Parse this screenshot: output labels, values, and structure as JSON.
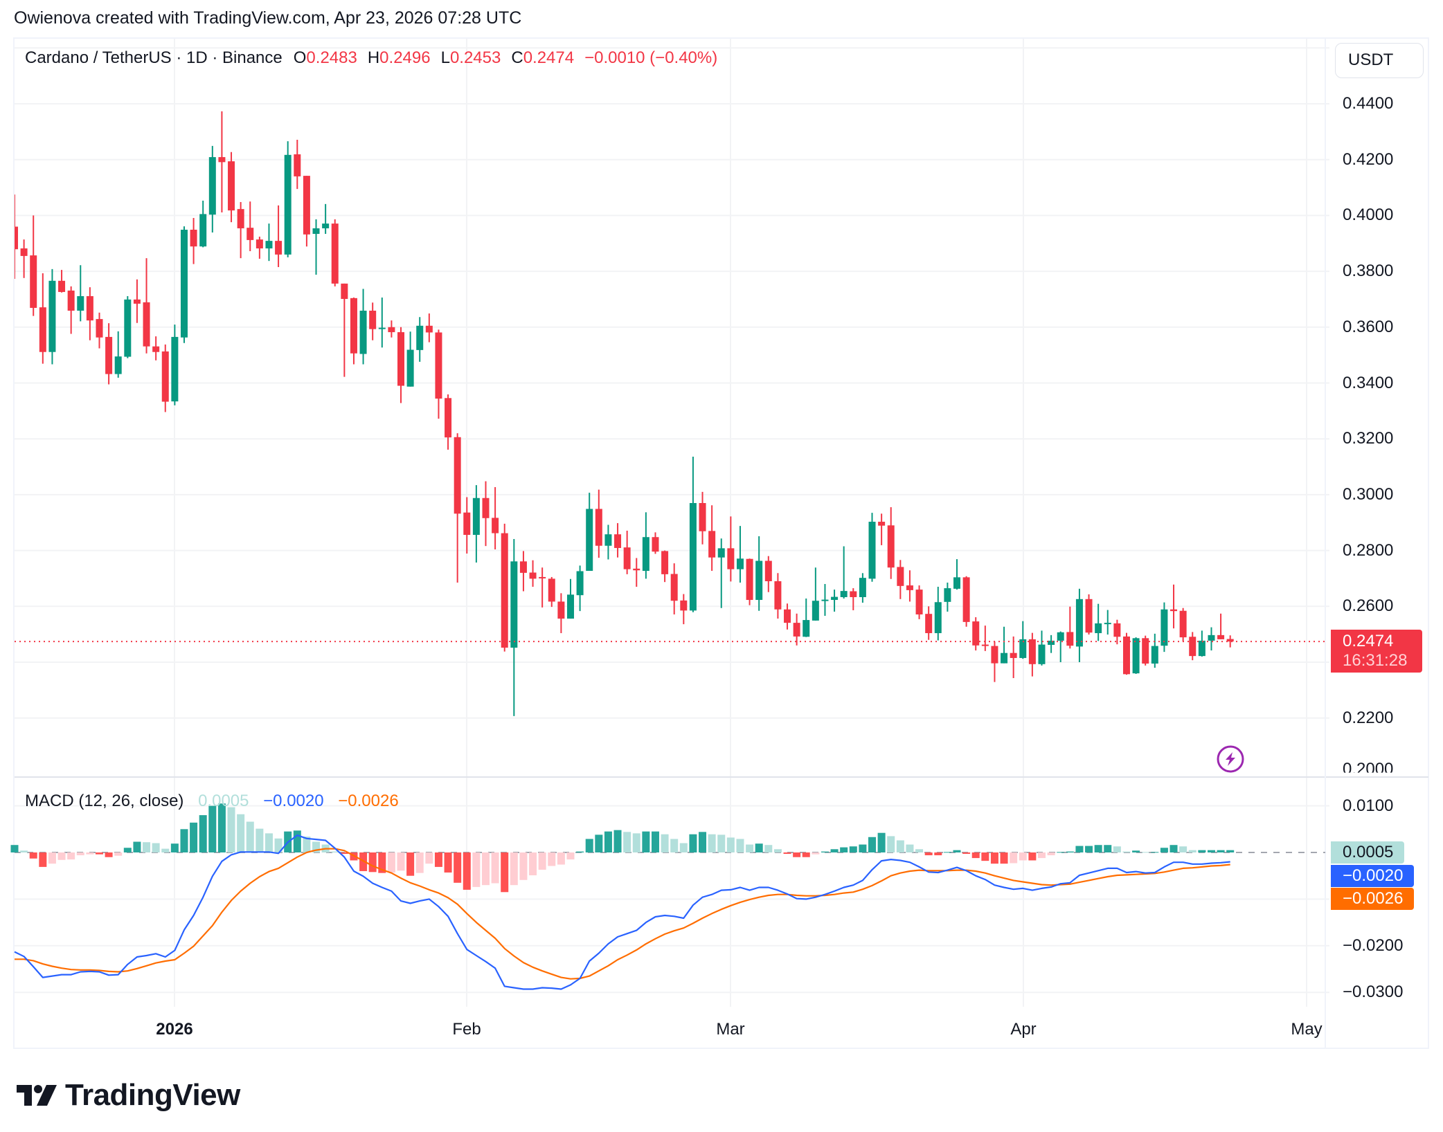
{
  "credit": "Owienova created with TradingView.com, Apr 23, 2026 07:28 UTC",
  "legend": {
    "symbol": "Cardano / TetherUS · 1D · Binance",
    "o_label": "O",
    "o": "0.2483",
    "h_label": "H",
    "h": "0.2496",
    "l_label": "L",
    "l": "0.2453",
    "c_label": "C",
    "c": "0.2474",
    "change": "−0.0010 (−0.40%)"
  },
  "currency_button": "USDT",
  "price_axis": {
    "labels": [
      "0.4400",
      "0.4200",
      "0.4000",
      "0.3800",
      "0.3600",
      "0.3400",
      "0.3200",
      "0.3000",
      "0.2800",
      "0.2600",
      "0.2200",
      "0.2000"
    ],
    "values": [
      0.44,
      0.42,
      0.4,
      0.38,
      0.36,
      0.34,
      0.32,
      0.3,
      0.28,
      0.26,
      0.22,
      0.2
    ]
  },
  "last_price": {
    "value": "0.2474",
    "countdown": "16:31:28",
    "color": "#f23645"
  },
  "macd": {
    "title": "MACD (12, 26, close)",
    "histogram_value": "0.0005",
    "macd_value": "−0.0020",
    "signal_value": "−0.0026",
    "axis_labels": [
      "0.0100",
      "−0.0200",
      "−0.0300"
    ],
    "axis_values": [
      0.01,
      -0.02,
      -0.03
    ]
  },
  "time_axis": {
    "labels": [
      "2026",
      "Feb",
      "Mar",
      "Apr",
      "May"
    ]
  },
  "logo": {
    "text": "TradingView"
  },
  "icons": {
    "alert": "lightning-icon"
  },
  "colors": {
    "up": "#089981",
    "down": "#f23645",
    "hist_up_strong": "#26a69a",
    "hist_up_weak": "#b2dfdb",
    "hist_down_strong": "#ff5252",
    "hist_down_weak": "#ffcdd2",
    "macd_line": "#2962ff",
    "signal_line": "#ff6d00",
    "grid": "#f2f3f5"
  },
  "chart_data": {
    "type": "candlestick",
    "title": "Cardano / TetherUS · 1D · Binance",
    "xlabel": "",
    "ylabel": "USDT",
    "x_ticks": [
      "2026",
      "Feb",
      "Mar",
      "Apr",
      "May"
    ],
    "ylim": [
      0.2,
      0.46
    ],
    "grid": true,
    "ohlc": [
      [
        0.396,
        0.4075,
        0.3773,
        0.3879
      ],
      [
        0.3882,
        0.3914,
        0.3776,
        0.3855
      ],
      [
        0.3857,
        0.4,
        0.364,
        0.3669
      ],
      [
        0.3671,
        0.3793,
        0.3469,
        0.3511
      ],
      [
        0.3511,
        0.3808,
        0.3467,
        0.3766
      ],
      [
        0.3766,
        0.3805,
        0.3724,
        0.3726
      ],
      [
        0.3731,
        0.3746,
        0.3576,
        0.3659
      ],
      [
        0.3659,
        0.3822,
        0.3621,
        0.3711
      ],
      [
        0.3711,
        0.3743,
        0.3553,
        0.3624
      ],
      [
        0.3629,
        0.3652,
        0.3524,
        0.3563
      ],
      [
        0.3565,
        0.3614,
        0.3395,
        0.3432
      ],
      [
        0.3432,
        0.3585,
        0.3419,
        0.3495
      ],
      [
        0.3494,
        0.3711,
        0.3489,
        0.3699
      ],
      [
        0.3699,
        0.3771,
        0.3615,
        0.3684
      ],
      [
        0.3689,
        0.3847,
        0.3506,
        0.3531
      ],
      [
        0.3531,
        0.3567,
        0.3481,
        0.3511
      ],
      [
        0.3513,
        0.3538,
        0.3296,
        0.3333
      ],
      [
        0.3334,
        0.3609,
        0.332,
        0.3565
      ],
      [
        0.3563,
        0.3961,
        0.3543,
        0.3949
      ],
      [
        0.3949,
        0.3991,
        0.3826,
        0.3889
      ],
      [
        0.3889,
        0.4053,
        0.3886,
        0.4005
      ],
      [
        0.4003,
        0.4249,
        0.3939,
        0.4209
      ],
      [
        0.4209,
        0.4373,
        0.4011,
        0.4191
      ],
      [
        0.4194,
        0.4227,
        0.3976,
        0.4018
      ],
      [
        0.4023,
        0.4048,
        0.3847,
        0.3954
      ],
      [
        0.3956,
        0.405,
        0.3872,
        0.3912
      ],
      [
        0.3914,
        0.3924,
        0.3845,
        0.3882
      ],
      [
        0.3882,
        0.3971,
        0.3837,
        0.3909
      ],
      [
        0.3909,
        0.4036,
        0.3815,
        0.386
      ],
      [
        0.386,
        0.4266,
        0.385,
        0.4217
      ],
      [
        0.4219,
        0.4271,
        0.4095,
        0.414
      ],
      [
        0.4142,
        0.4142,
        0.3889,
        0.3932
      ],
      [
        0.3934,
        0.3986,
        0.3788,
        0.3954
      ],
      [
        0.3954,
        0.4041,
        0.3934,
        0.3971
      ],
      [
        0.3971,
        0.3986,
        0.3746,
        0.3756
      ],
      [
        0.3756,
        0.3756,
        0.3422,
        0.3701
      ],
      [
        0.3704,
        0.3706,
        0.3467,
        0.3506
      ],
      [
        0.3504,
        0.3737,
        0.3467,
        0.3659
      ],
      [
        0.3659,
        0.3688,
        0.3553,
        0.3593
      ],
      [
        0.3594,
        0.3706,
        0.3527,
        0.3598
      ],
      [
        0.36,
        0.3624,
        0.3563,
        0.3582
      ],
      [
        0.3582,
        0.36,
        0.3328,
        0.339
      ],
      [
        0.3387,
        0.3584,
        0.3387,
        0.3519
      ],
      [
        0.3518,
        0.3636,
        0.3476,
        0.3605
      ],
      [
        0.3605,
        0.3649,
        0.3546,
        0.3581
      ],
      [
        0.3581,
        0.3591,
        0.3272,
        0.3344
      ],
      [
        0.3346,
        0.3359,
        0.3161,
        0.3205
      ],
      [
        0.3206,
        0.322,
        0.2685,
        0.2932
      ],
      [
        0.2936,
        0.2991,
        0.2789,
        0.2856
      ],
      [
        0.2856,
        0.3034,
        0.2757,
        0.2988
      ],
      [
        0.2988,
        0.3048,
        0.2816,
        0.2916
      ],
      [
        0.2917,
        0.3027,
        0.2804,
        0.2862
      ],
      [
        0.2862,
        0.2896,
        0.2438,
        0.2452
      ],
      [
        0.2452,
        0.2841,
        0.2207,
        0.2761
      ],
      [
        0.2761,
        0.2798,
        0.2654,
        0.272
      ],
      [
        0.2721,
        0.2765,
        0.267,
        0.2699
      ],
      [
        0.2705,
        0.2739,
        0.2596,
        0.2701
      ],
      [
        0.2699,
        0.2705,
        0.2598,
        0.2617
      ],
      [
        0.2617,
        0.2647,
        0.2504,
        0.2556
      ],
      [
        0.2556,
        0.2698,
        0.2556,
        0.2642
      ],
      [
        0.264,
        0.2746,
        0.2583,
        0.2726
      ],
      [
        0.2727,
        0.3007,
        0.2727,
        0.2949
      ],
      [
        0.2949,
        0.3018,
        0.2774,
        0.2817
      ],
      [
        0.2817,
        0.2892,
        0.2768,
        0.2858
      ],
      [
        0.2858,
        0.2898,
        0.2775,
        0.2809
      ],
      [
        0.2811,
        0.2871,
        0.2715,
        0.2733
      ],
      [
        0.2735,
        0.2773,
        0.267,
        0.2729
      ],
      [
        0.2727,
        0.2937,
        0.2699,
        0.2848
      ],
      [
        0.2848,
        0.2865,
        0.2788,
        0.2796
      ],
      [
        0.2798,
        0.28,
        0.2687,
        0.2715
      ],
      [
        0.2716,
        0.2754,
        0.2571,
        0.262
      ],
      [
        0.2621,
        0.2644,
        0.2536,
        0.2585
      ],
      [
        0.2585,
        0.3136,
        0.2579,
        0.297
      ],
      [
        0.297,
        0.301,
        0.2822,
        0.2869
      ],
      [
        0.287,
        0.2962,
        0.2727,
        0.2775
      ],
      [
        0.2775,
        0.2843,
        0.2594,
        0.2808
      ],
      [
        0.2808,
        0.2922,
        0.2689,
        0.2733
      ],
      [
        0.2733,
        0.2888,
        0.2685,
        0.2771
      ],
      [
        0.277,
        0.2771,
        0.2604,
        0.2623
      ],
      [
        0.2623,
        0.2851,
        0.2584,
        0.2763
      ],
      [
        0.2763,
        0.278,
        0.2651,
        0.269
      ],
      [
        0.269,
        0.2719,
        0.2556,
        0.2589
      ],
      [
        0.2589,
        0.261,
        0.2517,
        0.2541
      ],
      [
        0.2541,
        0.2574,
        0.246,
        0.2492
      ],
      [
        0.2491,
        0.2628,
        0.249,
        0.2551
      ],
      [
        0.2549,
        0.2739,
        0.2549,
        0.262
      ],
      [
        0.2619,
        0.268,
        0.2566,
        0.2624
      ],
      [
        0.2623,
        0.266,
        0.2581,
        0.2634
      ],
      [
        0.2633,
        0.2815,
        0.2628,
        0.2655
      ],
      [
        0.2654,
        0.2665,
        0.2586,
        0.2633
      ],
      [
        0.2633,
        0.2719,
        0.2613,
        0.2702
      ],
      [
        0.2699,
        0.2935,
        0.2688,
        0.2903
      ],
      [
        0.2903,
        0.2932,
        0.2819,
        0.2889
      ],
      [
        0.289,
        0.2955,
        0.2698,
        0.2739
      ],
      [
        0.2741,
        0.2766,
        0.2626,
        0.2673
      ],
      [
        0.2675,
        0.2729,
        0.2617,
        0.2658
      ],
      [
        0.266,
        0.2675,
        0.2554,
        0.2571
      ],
      [
        0.2573,
        0.26,
        0.248,
        0.2504
      ],
      [
        0.2504,
        0.267,
        0.2478,
        0.2615
      ],
      [
        0.2616,
        0.2685,
        0.2581,
        0.2665
      ],
      [
        0.2663,
        0.2769,
        0.266,
        0.2704
      ],
      [
        0.2704,
        0.2708,
        0.2527,
        0.2544
      ],
      [
        0.2546,
        0.2561,
        0.2442,
        0.246
      ],
      [
        0.2463,
        0.2531,
        0.244,
        0.246
      ],
      [
        0.2458,
        0.2474,
        0.2329,
        0.2396
      ],
      [
        0.2396,
        0.2527,
        0.2396,
        0.2433
      ],
      [
        0.2433,
        0.2492,
        0.2343,
        0.2415
      ],
      [
        0.2415,
        0.2547,
        0.2412,
        0.2482
      ],
      [
        0.2482,
        0.2505,
        0.2349,
        0.2393
      ],
      [
        0.2393,
        0.2513,
        0.2388,
        0.2463
      ],
      [
        0.2462,
        0.2497,
        0.2433,
        0.2477
      ],
      [
        0.2477,
        0.251,
        0.24,
        0.2507
      ],
      [
        0.2508,
        0.2599,
        0.2449,
        0.2459
      ],
      [
        0.2456,
        0.2663,
        0.24,
        0.2626
      ],
      [
        0.2626,
        0.2643,
        0.2499,
        0.2506
      ],
      [
        0.2504,
        0.2609,
        0.2476,
        0.2539
      ],
      [
        0.2538,
        0.2587,
        0.2499,
        0.2541
      ],
      [
        0.2539,
        0.2552,
        0.2464,
        0.2491
      ],
      [
        0.2492,
        0.2505,
        0.2355,
        0.2357
      ],
      [
        0.236,
        0.2489,
        0.2358,
        0.2486
      ],
      [
        0.2486,
        0.2495,
        0.2388,
        0.2395
      ],
      [
        0.2395,
        0.2502,
        0.238,
        0.2458
      ],
      [
        0.2459,
        0.2614,
        0.2437,
        0.2589
      ],
      [
        0.2589,
        0.2678,
        0.2521,
        0.2583
      ],
      [
        0.2584,
        0.2594,
        0.2474,
        0.2489
      ],
      [
        0.2491,
        0.2508,
        0.2407,
        0.2422
      ],
      [
        0.2422,
        0.2513,
        0.242,
        0.2477
      ],
      [
        0.2477,
        0.2525,
        0.2442,
        0.2497
      ],
      [
        0.2497,
        0.2574,
        0.2482,
        0.2482
      ],
      [
        0.2483,
        0.2496,
        0.2453,
        0.2474
      ]
    ],
    "macd_series": {
      "histogram": [
        0.0016,
        0.0004,
        -0.0013,
        -0.0031,
        -0.0024,
        -0.0016,
        -0.0015,
        -0.0006,
        -0.0004,
        -0.0004,
        -0.001,
        -0.0007,
        0.001,
        0.0023,
        0.0022,
        0.002,
        0.0008,
        0.0019,
        0.005,
        0.0064,
        0.008,
        0.01,
        0.0105,
        0.0097,
        0.0082,
        0.0066,
        0.0051,
        0.0041,
        0.003,
        0.0045,
        0.0047,
        0.0034,
        0.0023,
        0.0017,
        0.0002,
        -0.0003,
        -0.0017,
        -0.004,
        -0.0042,
        -0.0044,
        -0.0043,
        -0.0039,
        -0.005,
        -0.0044,
        -0.0024,
        -0.0031,
        -0.0043,
        -0.0065,
        -0.008,
        -0.0074,
        -0.007,
        -0.0066,
        -0.0085,
        -0.007,
        -0.0059,
        -0.0049,
        -0.0037,
        -0.0029,
        -0.0026,
        -0.0015,
        0.0002,
        0.0029,
        0.0038,
        0.0045,
        0.0048,
        0.0044,
        0.0041,
        0.0045,
        0.0045,
        0.0039,
        0.0029,
        0.002,
        0.0039,
        0.0044,
        0.0039,
        0.0038,
        0.0032,
        0.0029,
        0.0017,
        0.0019,
        0.0016,
        0.0007,
        -0.0003,
        -0.001,
        -0.001,
        -0.0004,
        0.0002,
        0.0007,
        0.0011,
        0.0013,
        0.0017,
        0.0033,
        0.0042,
        0.0035,
        0.0026,
        0.0017,
        0.0007,
        -0.0006,
        -0.0006,
        0.0001,
        0.0005,
        -0.0003,
        -0.0012,
        -0.0018,
        -0.0024,
        -0.0024,
        -0.0023,
        -0.0017,
        -0.0017,
        -0.0012,
        -0.0006,
        0.0001,
        0.0002,
        0.0014,
        0.0014,
        0.0016,
        0.0016,
        0.0013,
        0.0002,
        0.0004,
        0.0001,
        0.0001,
        0.001,
        0.0016,
        0.0013,
        0.0005,
        0.0005,
        0.0005,
        0.0005,
        0.0005
      ],
      "macd": [
        -0.0213,
        -0.0223,
        -0.0245,
        -0.0268,
        -0.0265,
        -0.0262,
        -0.0262,
        -0.0256,
        -0.0255,
        -0.0256,
        -0.0263,
        -0.0262,
        -0.024,
        -0.0224,
        -0.0221,
        -0.0217,
        -0.0224,
        -0.021,
        -0.0166,
        -0.0135,
        -0.0096,
        -0.0051,
        -0.0019,
        -0.0005,
        0.0001,
        0.0001,
        0.0001,
        0.0001,
        -0.0002,
        0.0022,
        0.0037,
        0.003,
        0.0028,
        0.0026,
        0.0009,
        -0.001,
        -0.004,
        -0.0051,
        -0.0066,
        -0.0075,
        -0.0083,
        -0.0104,
        -0.0109,
        -0.0104,
        -0.01,
        -0.0116,
        -0.0137,
        -0.0174,
        -0.0208,
        -0.0221,
        -0.0234,
        -0.0248,
        -0.0287,
        -0.029,
        -0.0293,
        -0.0293,
        -0.029,
        -0.0291,
        -0.0293,
        -0.0284,
        -0.027,
        -0.0233,
        -0.0216,
        -0.0196,
        -0.0181,
        -0.0174,
        -0.0167,
        -0.015,
        -0.0138,
        -0.0135,
        -0.0137,
        -0.0141,
        -0.0113,
        -0.0096,
        -0.009,
        -0.0081,
        -0.008,
        -0.0075,
        -0.0081,
        -0.0075,
        -0.0075,
        -0.0081,
        -0.0089,
        -0.0099,
        -0.01,
        -0.0096,
        -0.009,
        -0.0083,
        -0.0075,
        -0.007,
        -0.006,
        -0.0037,
        -0.0018,
        -0.0015,
        -0.0017,
        -0.0021,
        -0.0031,
        -0.0042,
        -0.0043,
        -0.0038,
        -0.0032,
        -0.0039,
        -0.005,
        -0.0058,
        -0.007,
        -0.0075,
        -0.0079,
        -0.0077,
        -0.0081,
        -0.0077,
        -0.0074,
        -0.0067,
        -0.0065,
        -0.0049,
        -0.0044,
        -0.0039,
        -0.0034,
        -0.0034,
        -0.0043,
        -0.0041,
        -0.0044,
        -0.0043,
        -0.0031,
        -0.0021,
        -0.0021,
        -0.0025,
        -0.0025,
        -0.0023,
        -0.0022,
        -0.002
      ],
      "signal": [
        -0.0229,
        -0.0229,
        -0.0232,
        -0.0239,
        -0.0244,
        -0.0248,
        -0.0251,
        -0.0252,
        -0.0252,
        -0.0253,
        -0.0255,
        -0.0256,
        -0.0254,
        -0.0249,
        -0.0243,
        -0.0237,
        -0.0233,
        -0.023,
        -0.0216,
        -0.0201,
        -0.0179,
        -0.0157,
        -0.0128,
        -0.0103,
        -0.0083,
        -0.0066,
        -0.0052,
        -0.0041,
        -0.0034,
        -0.0022,
        -0.001,
        0.0,
        0.0005,
        0.0008,
        0.0008,
        0.0004,
        -0.0007,
        -0.0018,
        -0.0029,
        -0.0037,
        -0.0044,
        -0.0055,
        -0.0065,
        -0.0072,
        -0.008,
        -0.0087,
        -0.0097,
        -0.0111,
        -0.0131,
        -0.015,
        -0.0167,
        -0.0184,
        -0.0206,
        -0.0222,
        -0.0236,
        -0.0246,
        -0.0254,
        -0.0261,
        -0.0268,
        -0.0271,
        -0.027,
        -0.0265,
        -0.0254,
        -0.0243,
        -0.023,
        -0.022,
        -0.0209,
        -0.0196,
        -0.0185,
        -0.0175,
        -0.0168,
        -0.0162,
        -0.0152,
        -0.0141,
        -0.0131,
        -0.0122,
        -0.0114,
        -0.0107,
        -0.0101,
        -0.0096,
        -0.0092,
        -0.009,
        -0.009,
        -0.0092,
        -0.0093,
        -0.0093,
        -0.0092,
        -0.009,
        -0.0087,
        -0.0085,
        -0.0079,
        -0.0071,
        -0.0061,
        -0.005,
        -0.0044,
        -0.004,
        -0.0038,
        -0.0039,
        -0.0039,
        -0.0039,
        -0.0038,
        -0.0038,
        -0.004,
        -0.0044,
        -0.005,
        -0.0055,
        -0.006,
        -0.0063,
        -0.0066,
        -0.0069,
        -0.007,
        -0.0069,
        -0.0068,
        -0.0064,
        -0.006,
        -0.0056,
        -0.0052,
        -0.0049,
        -0.0048,
        -0.0047,
        -0.0046,
        -0.0045,
        -0.0042,
        -0.0038,
        -0.0034,
        -0.0033,
        -0.0031,
        -0.0029,
        -0.0028,
        -0.0026
      ]
    },
    "macd_ylim": [
      -0.033,
      0.012
    ]
  }
}
